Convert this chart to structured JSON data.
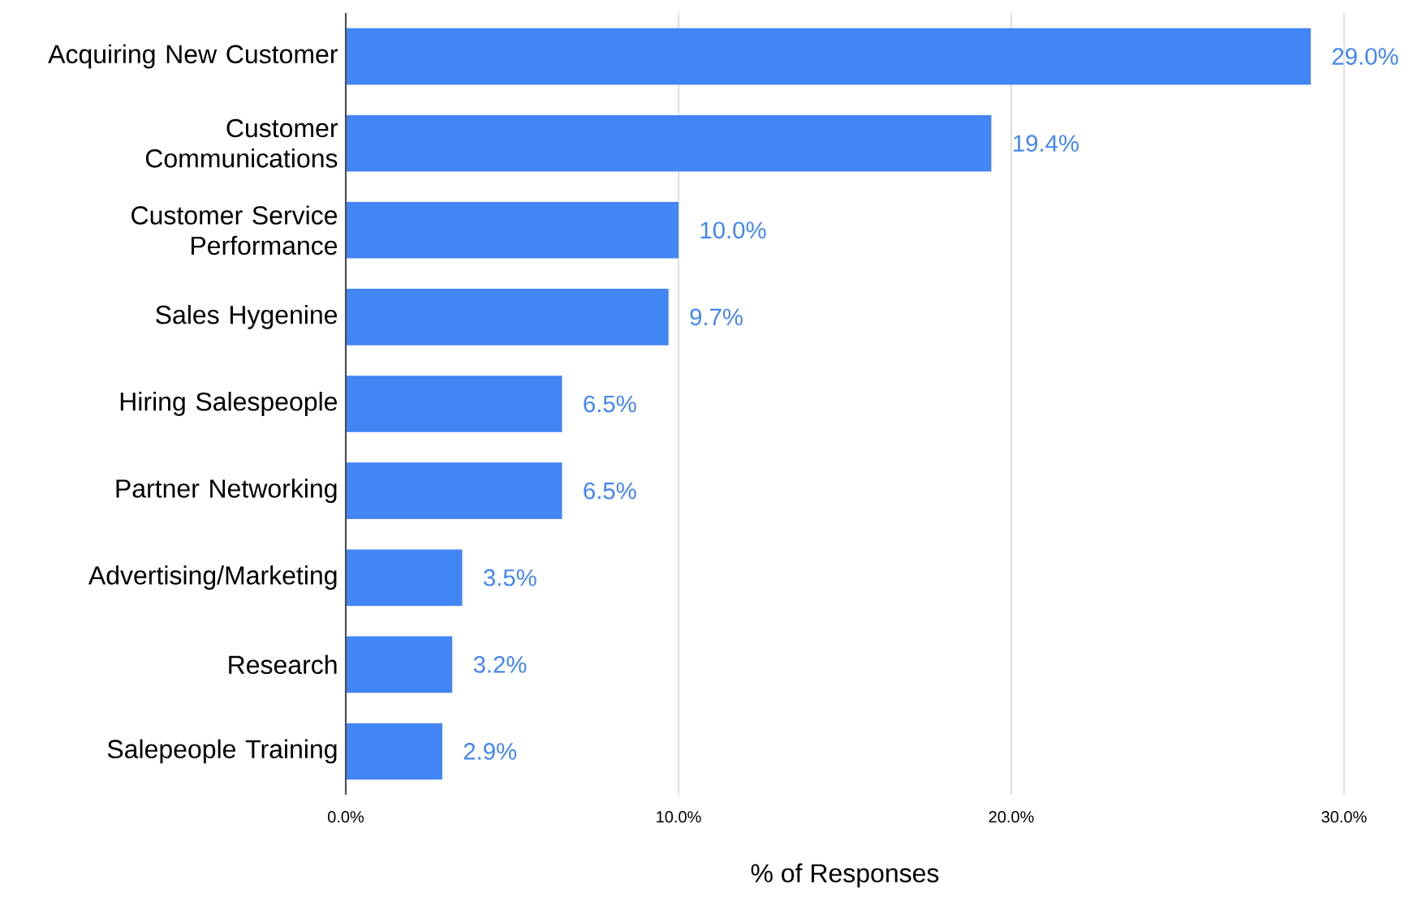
{
  "chart_data": {
    "type": "bar",
    "orientation": "horizontal",
    "xlabel": "% of Responses",
    "categories": [
      "Acquiring New Customer",
      "Customer Communications",
      "Customer Service Performance",
      "Sales Hygenine",
      "Hiring Salespeople",
      "Partner Networking",
      "Advertising/Marketing",
      "Research",
      "Salepeople Training"
    ],
    "values": [
      29.0,
      19.4,
      10.0,
      9.7,
      6.5,
      6.5,
      3.5,
      3.2,
      2.9
    ],
    "value_labels": [
      "29.0%",
      "19.4%",
      "10.0%",
      "9.7%",
      "6.5%",
      "6.5%",
      "3.5%",
      "3.2%",
      "2.9%"
    ],
    "color": "#4285f4",
    "xlim": [
      0,
      30
    ],
    "xticks": [
      {
        "value": 0,
        "label": "0.0%"
      },
      {
        "value": 10,
        "label": "10.0%"
      },
      {
        "value": 20,
        "label": "20.0%"
      },
      {
        "value": 30,
        "label": "30.0%"
      }
    ],
    "grid": "x"
  }
}
